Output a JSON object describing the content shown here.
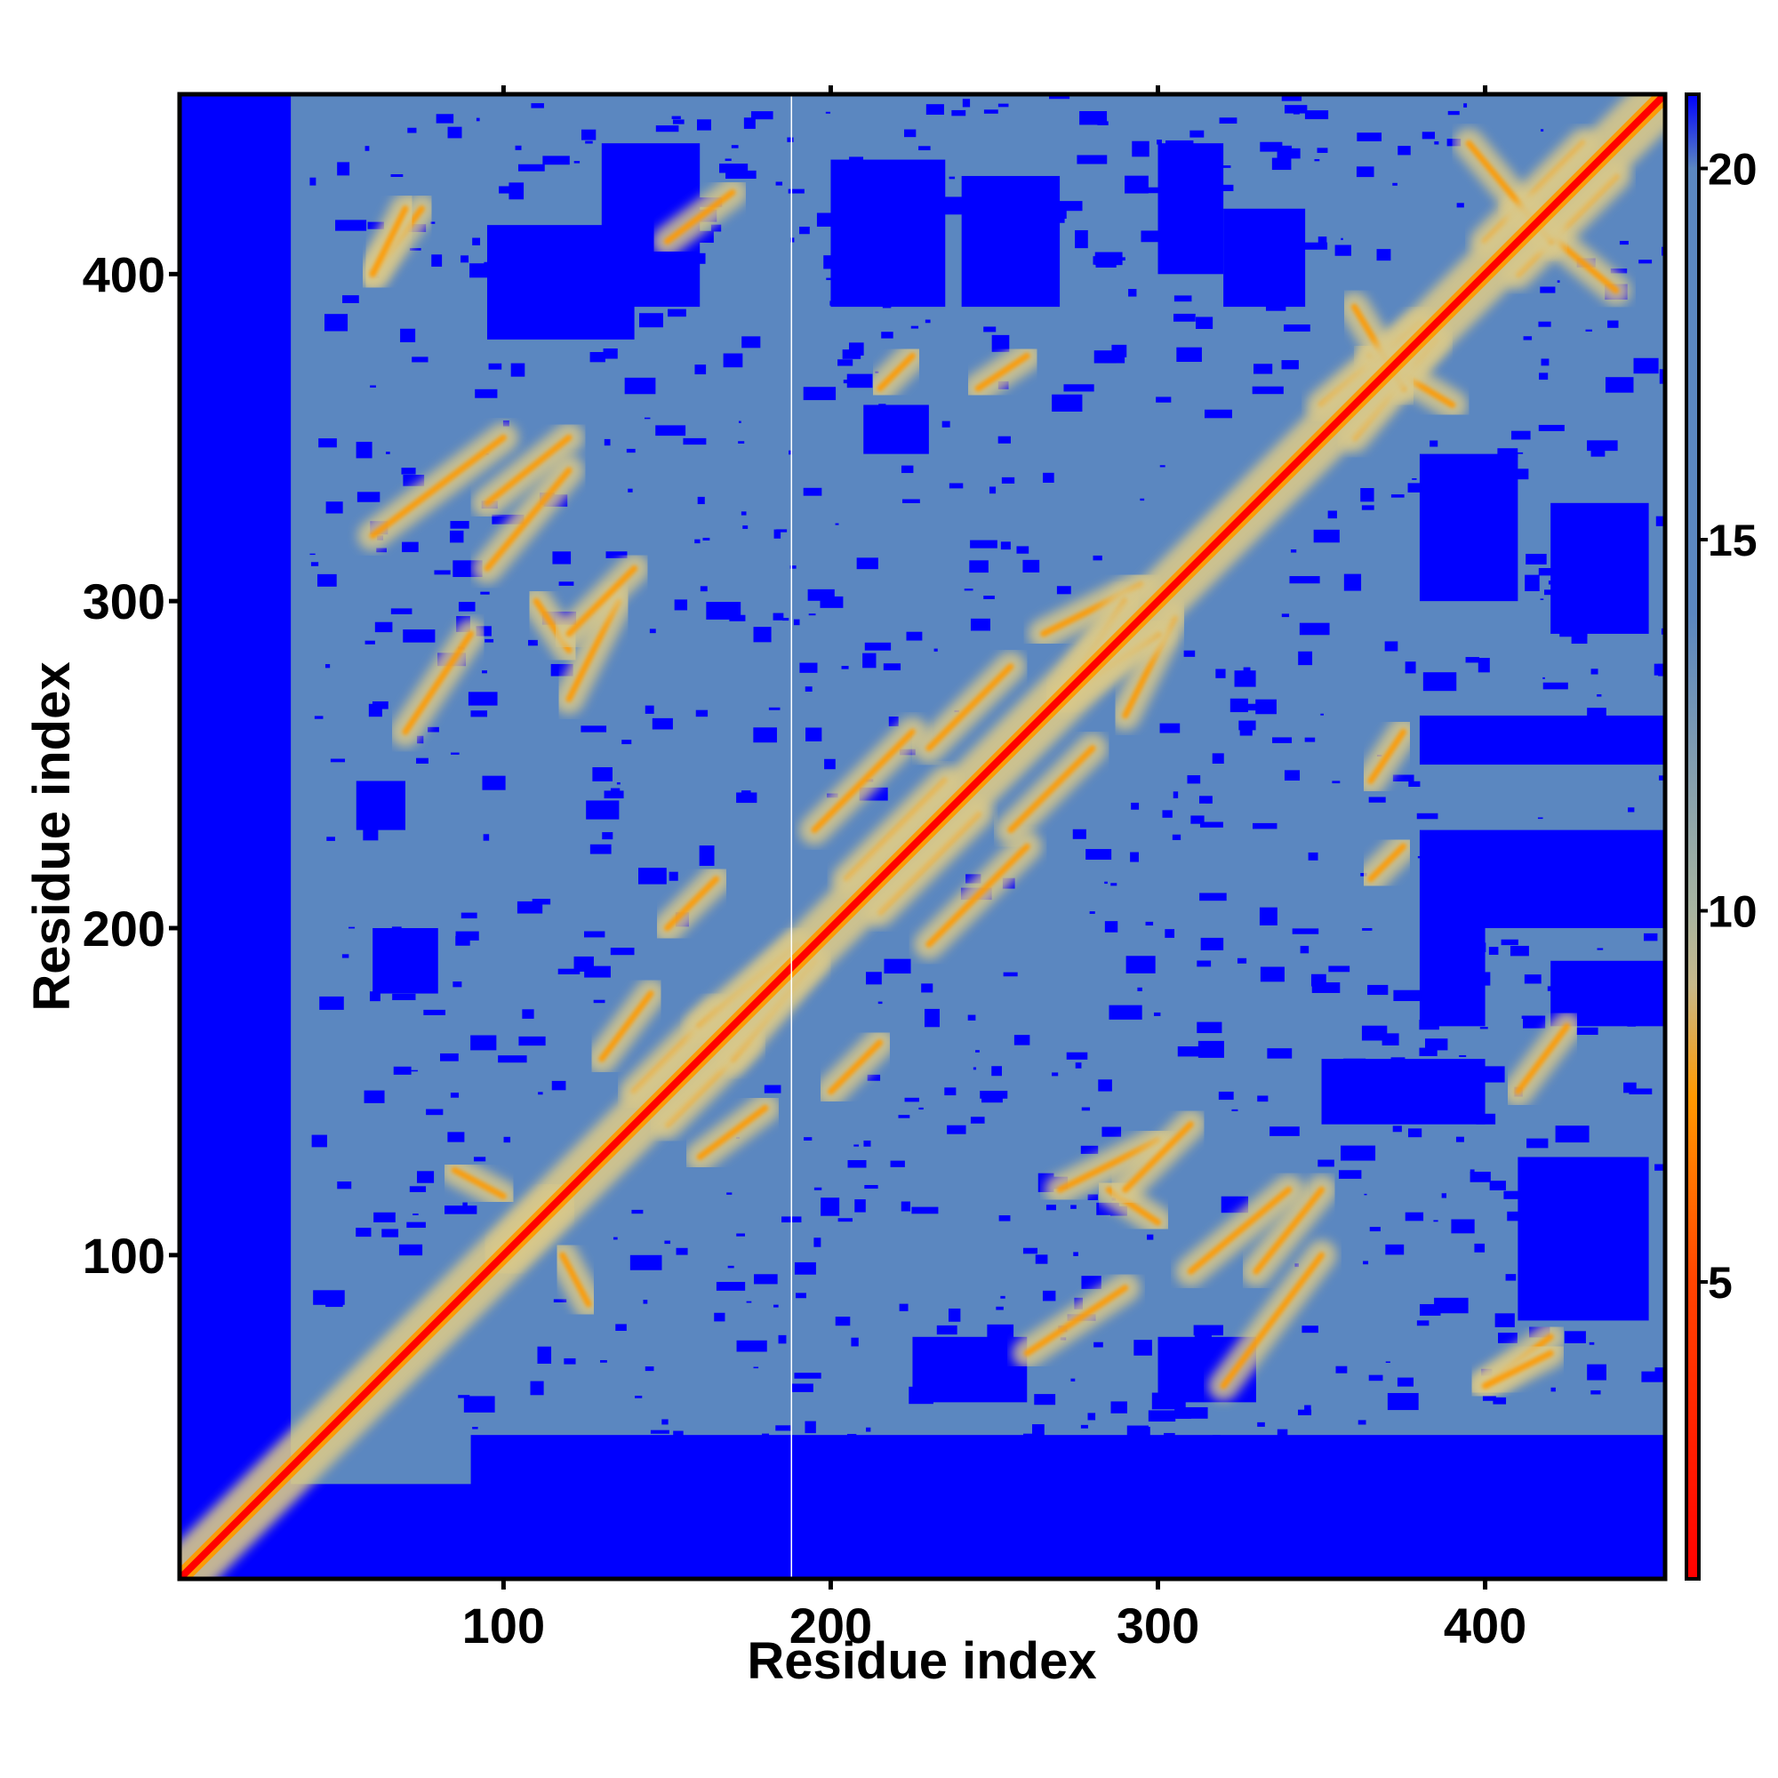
{
  "chart_data": {
    "type": "heatmap",
    "title": "",
    "xlabel": "Residue index",
    "ylabel": "Residue index",
    "x_range": [
      1,
      455
    ],
    "y_range": [
      1,
      455
    ],
    "x_ticks": [
      100,
      200,
      300,
      400
    ],
    "y_ticks": [
      100,
      200,
      300,
      400
    ],
    "colorbar": {
      "range": [
        1,
        21
      ],
      "ticks": [
        5,
        10,
        15,
        20
      ],
      "scale": [
        {
          "value": 1,
          "color": "#ff0000"
        },
        {
          "value": 5,
          "color": "#ff4400"
        },
        {
          "value": 7.5,
          "color": "#ff9900"
        },
        {
          "value": 9,
          "color": "#c7b98a"
        },
        {
          "value": 10,
          "color": "#a8b4a0"
        },
        {
          "value": 14,
          "color": "#5b87c0"
        },
        {
          "value": 20,
          "color": "#5b87c0"
        },
        {
          "value": 21,
          "color": "#0000ff"
        }
      ]
    },
    "colors": {
      "far": "#0000ff",
      "mid": "#5b87c0",
      "near": "#d8c88a",
      "close": "#ff9a00",
      "contact": "#ff0000"
    },
    "gap_residue": 188,
    "diagonal": "contact",
    "symmetric": true,
    "contact_bands": [
      {
        "from": [
          98,
          100
        ],
        "to": [
          116,
          118
        ],
        "kind": "antiparallel"
      },
      {
        "from": [
          118,
          100
        ],
        "to": [
          126,
          85
        ],
        "kind": "antiparallel"
      },
      {
        "from": [
          160,
          130
        ],
        "to": [
          180,
          145
        ],
        "kind": "parallel"
      },
      {
        "from": [
          140,
          150
        ],
        "to": [
          165,
          175
        ],
        "kind": "parallel"
      },
      {
        "from": [
          170,
          160
        ],
        "to": [
          195,
          190
        ],
        "kind": "parallel"
      },
      {
        "from": [
          200,
          150
        ],
        "to": [
          215,
          165
        ],
        "kind": "parallel"
      },
      {
        "from": [
          205,
          215
        ],
        "to": [
          235,
          245
        ],
        "kind": "parallel"
      },
      {
        "from": [
          230,
          195
        ],
        "to": [
          260,
          225
        ],
        "kind": "parallel"
      },
      {
        "from": [
          255,
          230
        ],
        "to": [
          280,
          255
        ],
        "kind": "parallel"
      },
      {
        "from": [
          265,
          290
        ],
        "to": [
          295,
          305
        ],
        "kind": "antiparallel"
      },
      {
        "from": [
          270,
          270
        ],
        "to": [
          300,
          290
        ],
        "kind": "parallel"
      },
      {
        "from": [
          320,
          60
        ],
        "to": [
          350,
          100
        ],
        "kind": "antiparallel"
      },
      {
        "from": [
          330,
          95
        ],
        "to": [
          350,
          120
        ],
        "kind": "parallel"
      },
      {
        "from": [
          270,
          120
        ],
        "to": [
          300,
          135
        ],
        "kind": "parallel"
      },
      {
        "from": [
          285,
          120
        ],
        "to": [
          300,
          110
        ],
        "kind": "antiparallel"
      },
      {
        "from": [
          350,
          360
        ],
        "to": [
          380,
          385
        ],
        "kind": "parallel"
      },
      {
        "from": [
          365,
          375
        ],
        "to": [
          390,
          360
        ],
        "kind": "antiparallel"
      },
      {
        "from": [
          400,
          410
        ],
        "to": [
          430,
          440
        ],
        "kind": "parallel"
      },
      {
        "from": [
          410,
          420
        ],
        "to": [
          440,
          395
        ],
        "kind": "antiparallel"
      },
      {
        "from": [
          400,
          60
        ],
        "to": [
          420,
          75
        ],
        "kind": "parallel"
      },
      {
        "from": [
          95,
          310
        ],
        "to": [
          120,
          340
        ],
        "kind": "parallel"
      },
      {
        "from": [
          120,
          290
        ],
        "to": [
          140,
          310
        ],
        "kind": "parallel"
      },
      {
        "from": [
          70,
          260
        ],
        "to": [
          90,
          290
        ],
        "kind": "parallel"
      },
      {
        "from": [
          60,
          400
        ],
        "to": [
          70,
          420
        ],
        "kind": "parallel"
      },
      {
        "from": [
          150,
          410
        ],
        "to": [
          170,
          425
        ],
        "kind": "parallel"
      },
      {
        "from": [
          215,
          365
        ],
        "to": [
          225,
          375
        ],
        "kind": "antiparallel"
      },
      {
        "from": [
          245,
          365
        ],
        "to": [
          260,
          375
        ],
        "kind": "parallel"
      }
    ],
    "far_blocks": [
      {
        "x": [
          0,
          35
        ],
        "y": [
          0,
          455
        ]
      },
      {
        "x": [
          0,
          455
        ],
        "y": [
          0,
          30
        ]
      },
      {
        "x": [
          90,
          455
        ],
        "y": [
          20,
          45
        ]
      },
      {
        "x": [
          200,
          235
        ],
        "y": [
          390,
          435
        ]
      },
      {
        "x": [
          240,
          270
        ],
        "y": [
          390,
          430
        ]
      },
      {
        "x": [
          300,
          320
        ],
        "y": [
          400,
          440
        ]
      },
      {
        "x": [
          320,
          345
        ],
        "y": [
          390,
          420
        ]
      },
      {
        "x": [
          210,
          230
        ],
        "y": [
          345,
          360
        ]
      },
      {
        "x": [
          380,
          410
        ],
        "y": [
          300,
          345
        ]
      },
      {
        "x": [
          420,
          450
        ],
        "y": [
          290,
          330
        ]
      },
      {
        "x": [
          380,
          455
        ],
        "y": [
          250,
          265
        ]
      },
      {
        "x": [
          380,
          400
        ],
        "y": [
          170,
          200
        ]
      },
      {
        "x": [
          420,
          455
        ],
        "y": [
          170,
          190
        ]
      },
      {
        "x": [
          380,
          455
        ],
        "y": [
          200,
          230
        ]
      },
      {
        "x": [
          410,
          450
        ],
        "y": [
          80,
          130
        ]
      },
      {
        "x": [
          350,
          400
        ],
        "y": [
          140,
          160
        ]
      },
      {
        "x": [
          95,
          140
        ],
        "y": [
          380,
          415
        ]
      },
      {
        "x": [
          130,
          160
        ],
        "y": [
          390,
          440
        ]
      },
      {
        "x": [
          60,
          80
        ],
        "y": [
          180,
          200
        ]
      },
      {
        "x": [
          55,
          70
        ],
        "y": [
          230,
          245
        ]
      },
      {
        "x": [
          300,
          330
        ],
        "y": [
          55,
          75
        ]
      },
      {
        "x": [
          225,
          260
        ],
        "y": [
          55,
          75
        ]
      }
    ]
  }
}
